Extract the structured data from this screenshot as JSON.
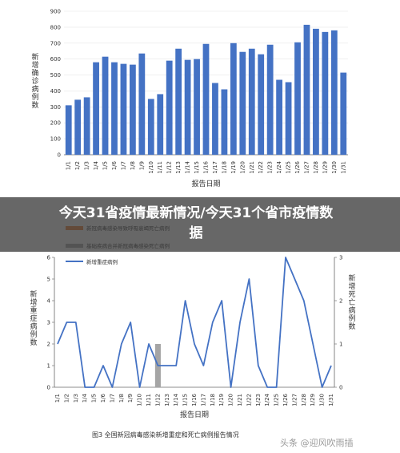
{
  "overlay_title": "今天31省疫情最新情况/今天31个省市疫情数据",
  "caption": "图3   全国新冠病毒感染新增重症和死亡病例报告情况",
  "watermark": "头条 @迎风吹雨插",
  "chart_data": [
    {
      "type": "bar",
      "ylabel": "新增确诊病例数",
      "xlabel": "报告日期",
      "ylim": [
        0,
        900
      ],
      "yticks": [
        0,
        100,
        200,
        300,
        400,
        500,
        600,
        700,
        800,
        900
      ],
      "bar_color": "#4472c4",
      "categories": [
        "1/1",
        "1/2",
        "1/3",
        "1/4",
        "1/5",
        "1/6",
        "1/7",
        "1/8",
        "1/9",
        "1/10",
        "1/11",
        "1/12",
        "1/13",
        "1/14",
        "1/15",
        "1/16",
        "1/17",
        "1/18",
        "1/19",
        "1/20",
        "1/21",
        "1/22",
        "1/23",
        "1/24",
        "1/25",
        "1/26",
        "1/27",
        "1/28",
        "1/29",
        "1/30",
        "1/31"
      ],
      "values": [
        310,
        345,
        360,
        580,
        615,
        580,
        570,
        565,
        635,
        350,
        380,
        590,
        665,
        595,
        600,
        695,
        450,
        410,
        700,
        645,
        665,
        630,
        690,
        470,
        455,
        705,
        815,
        790,
        770,
        780,
        515
      ]
    },
    {
      "type": "line",
      "ylabel": "新增重症病例数",
      "ylabel_right": "新增死亡病例数",
      "xlabel": "报告日期",
      "ylim": [
        0,
        6
      ],
      "ylim_right": [
        0,
        3
      ],
      "yticks": [
        0,
        1,
        2,
        3,
        4,
        5,
        6
      ],
      "yticks_right": [
        0,
        1,
        2,
        3
      ],
      "line_color": "#4472c4",
      "categories": [
        "1/1",
        "1/2",
        "1/3",
        "1/4",
        "1/5",
        "1/6",
        "1/7",
        "1/8",
        "1/9",
        "1/10",
        "1/11",
        "1/12",
        "1/13",
        "1/14",
        "1/15",
        "1/16",
        "1/17",
        "1/18",
        "1/19",
        "1/20",
        "1/21",
        "1/22",
        "1/23",
        "1/24",
        "1/25",
        "1/26",
        "1/27",
        "1/28",
        "1/29",
        "1/30",
        "1/31"
      ],
      "series": [
        {
          "name": "新增重症病例",
          "color": "#4472c4",
          "values": [
            2,
            3,
            3,
            0,
            0,
            1,
            0,
            2,
            3,
            0,
            2,
            1,
            1,
            1,
            4,
            2,
            1,
            3,
            4,
            0,
            3,
            5,
            1,
            0,
            0,
            6,
            5,
            4,
            2,
            0,
            1
          ]
        }
      ],
      "bar_series": [
        {
          "name": "新冠病毒感染导致呼吸衰竭死亡病例",
          "color": "#ed7d31",
          "values": [
            0,
            0,
            0,
            0,
            0,
            0,
            0,
            0,
            0,
            0,
            0,
            0,
            0,
            0,
            0,
            0,
            0,
            0,
            0,
            0,
            0,
            0,
            0,
            0,
            0,
            0,
            0,
            0,
            0,
            0,
            0
          ]
        },
        {
          "name": "基础疾病合并新冠病毒感染死亡病例",
          "color": "#a5a5a5",
          "values": [
            0,
            0,
            0,
            0,
            0,
            0,
            0,
            0,
            0,
            0,
            0,
            1,
            0,
            0,
            0,
            0,
            0,
            0,
            0,
            0,
            0,
            0,
            0,
            0,
            0,
            0,
            0,
            0,
            0,
            0,
            0
          ]
        }
      ]
    }
  ]
}
